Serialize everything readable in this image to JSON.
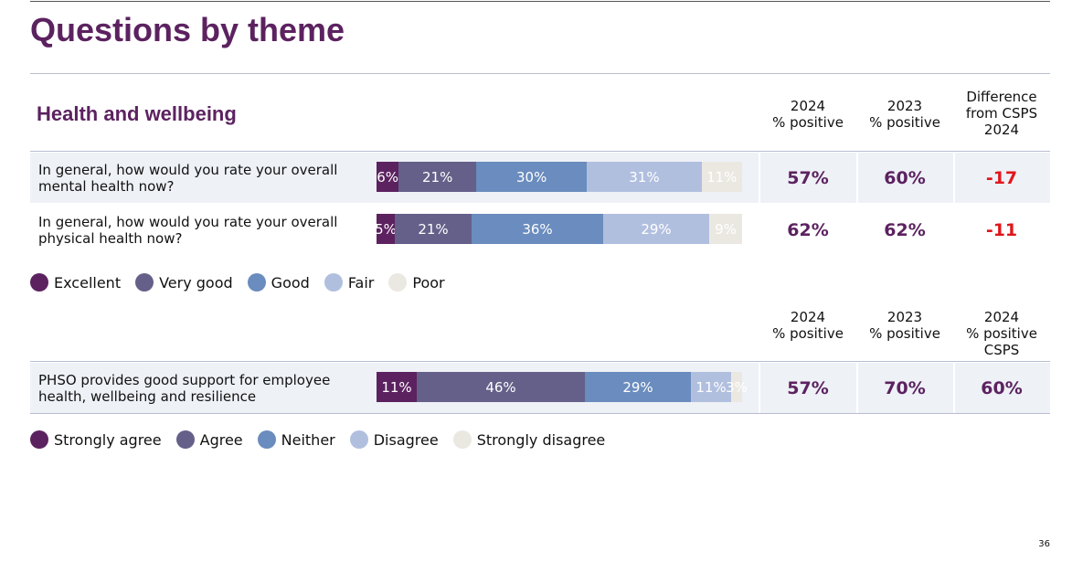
{
  "title": "Questions by theme",
  "section": "Health and wellbeing",
  "header1": {
    "c1": [
      "2024",
      "% positive"
    ],
    "c2": [
      "2023",
      "% positive"
    ],
    "c3": [
      "Difference",
      "from CSPS",
      "2024"
    ]
  },
  "header2": {
    "c1": [
      "2024",
      "% positive"
    ],
    "c2": [
      "2023",
      "% positive"
    ],
    "c3": [
      "2024",
      "% positive",
      "CSPS"
    ]
  },
  "colors": [
    "#5c2260",
    "#646089",
    "#6a8cbe",
    "#b1bfdf",
    "#ebe8e2"
  ],
  "legend1": [
    "Excellent",
    "Very good",
    "Good",
    "Fair",
    "Poor"
  ],
  "legend2": [
    "Strongly agree",
    "Agree",
    "Neither",
    "Disagree",
    "Strongly disagree"
  ],
  "chart_data": {
    "type": "bar",
    "stacked": true,
    "orientation": "horizontal",
    "rows": [
      {
        "question": "In general, how would you rate your overall mental health now?",
        "values": [
          6,
          21,
          30,
          31,
          11
        ],
        "labels": [
          "6%",
          "21%",
          "30%",
          "31%",
          "11%"
        ],
        "p2024": "57%",
        "p2023": "60%",
        "third": "-17"
      },
      {
        "question": "In general, how would you rate your overall physical health now?",
        "values": [
          5,
          21,
          36,
          29,
          9
        ],
        "labels": [
          "5%",
          "21%",
          "36%",
          "29%",
          "9%"
        ],
        "p2024": "62%",
        "p2023": "62%",
        "third": "-11"
      },
      {
        "question": "PHSO provides good support for employee health, wellbeing and resilience",
        "values": [
          11,
          46,
          29,
          11,
          3
        ],
        "labels": [
          "11%",
          "46%",
          "29%",
          "11%",
          "3%"
        ],
        "p2024": "57%",
        "p2023": "70%",
        "third": "60%"
      }
    ]
  },
  "page": "36"
}
